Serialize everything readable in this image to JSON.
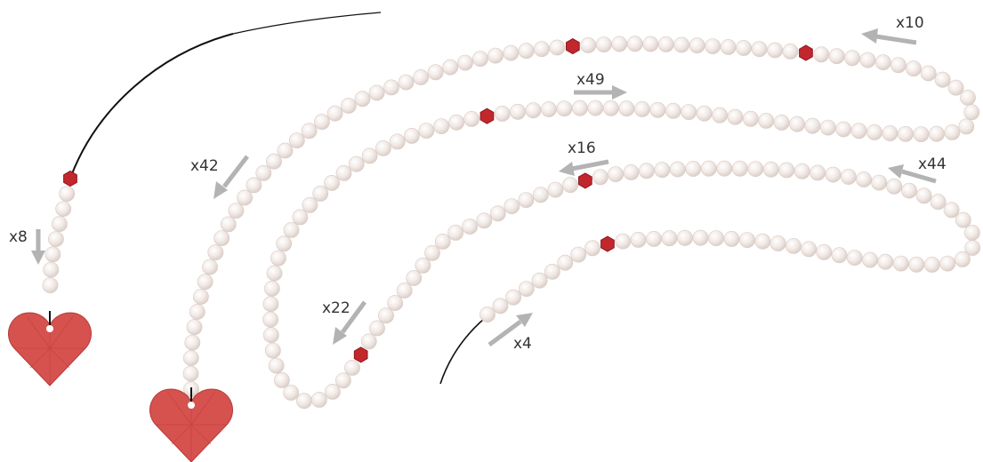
{
  "labels": {
    "x8": "x8",
    "x42": "x42",
    "x49": "x49",
    "x10": "x10",
    "x16": "x16",
    "x44": "x44",
    "x22": "x22",
    "x4": "x4"
  },
  "colors": {
    "pearl": "#efe7e3",
    "pearl_edge": "#d9ccc6",
    "crystal": "#c1272d",
    "crystal_round": "#d9443f",
    "heart": "#d6524f",
    "heart_edge": "#b33b39",
    "arrow": "#b3b3b3",
    "thread": "#111111"
  }
}
